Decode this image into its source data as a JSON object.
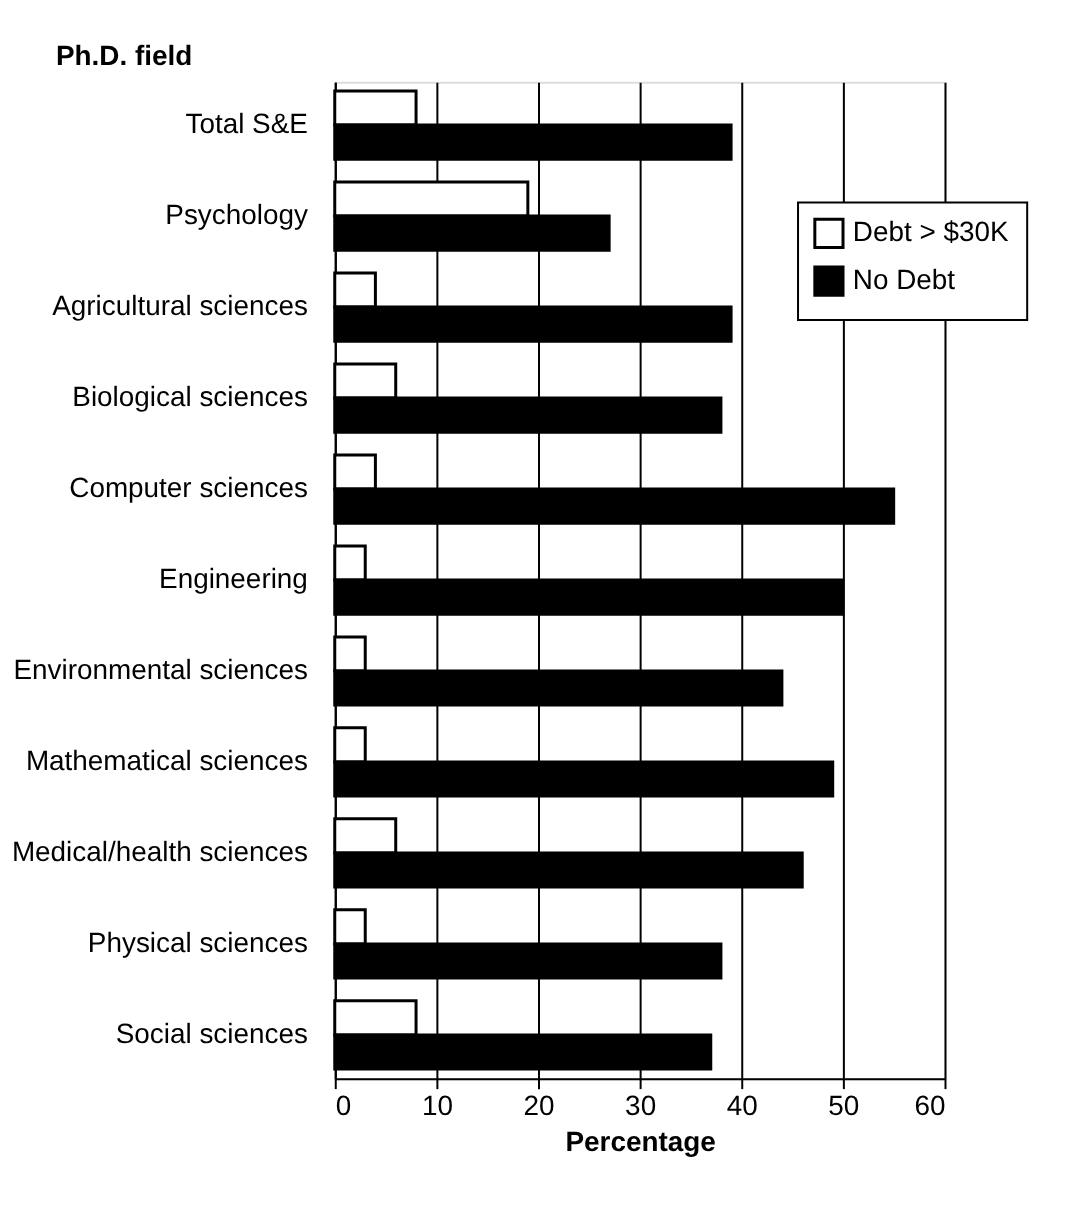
{
  "chart_data": {
    "type": "bar",
    "orientation": "horizontal",
    "ylabel": "Ph.D. field",
    "xlabel": "Percentage",
    "categories": [
      "Total S&E",
      "Psychology",
      "Agricultural sciences",
      "Biological sciences",
      "Computer sciences",
      "Engineering",
      "Environmental sciences",
      "Mathematical sciences",
      "Medical/health sciences",
      "Physical sciences",
      "Social sciences"
    ],
    "series": [
      {
        "name": "Debt > $30K",
        "color": "#ffffff",
        "values": [
          8,
          19,
          4,
          6,
          4,
          3,
          3,
          3,
          6,
          3,
          8
        ]
      },
      {
        "name": "No Debt",
        "color": "#000000",
        "values": [
          39,
          27,
          39,
          38,
          55,
          50,
          44,
          49,
          46,
          38,
          37
        ]
      }
    ],
    "xlim": [
      0,
      60
    ],
    "xticks": [
      0,
      10,
      20,
      30,
      40,
      50,
      60
    ],
    "grid": "x",
    "legend": "top right"
  }
}
